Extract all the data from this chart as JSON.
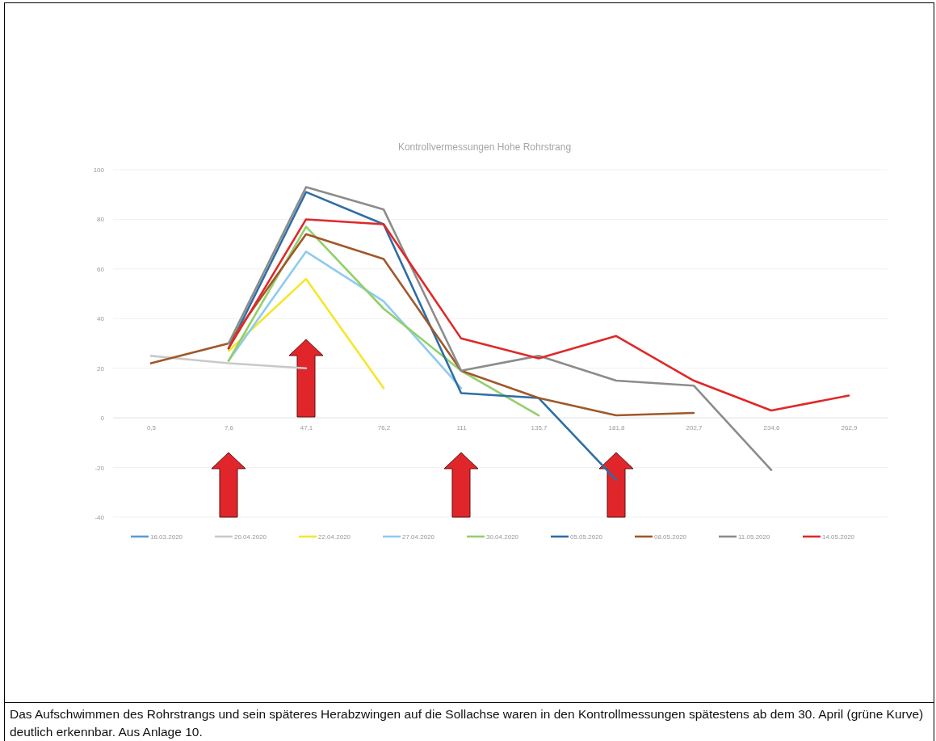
{
  "chart_data": {
    "type": "line",
    "title": "Kontrollvermessungen Hohe Rohrstrang",
    "categories": [
      "0,5",
      "7,6",
      "47,1",
      "76,2",
      "111",
      "135,7",
      "181,8",
      "202,7",
      "234,6",
      "262,9"
    ],
    "series": [
      {
        "name": "16.03.2020",
        "color": "#5b9bd5",
        "values": [
          null,
          null,
          null,
          null,
          null,
          null,
          null,
          null,
          null,
          null
        ]
      },
      {
        "name": "20.04.2020",
        "color": "#c9c9c9",
        "values": [
          25,
          22,
          20,
          null,
          null,
          null,
          null,
          null,
          null,
          null
        ]
      },
      {
        "name": "22.04.2020",
        "color": "#f5e62a",
        "values": [
          null,
          27,
          56,
          12,
          null,
          null,
          null,
          null,
          null,
          null
        ]
      },
      {
        "name": "27.04.2020",
        "color": "#8ecbef",
        "values": [
          null,
          23,
          67,
          47,
          12,
          null,
          null,
          null,
          null,
          null
        ]
      },
      {
        "name": "30.04.2020",
        "color": "#92d06a",
        "values": [
          null,
          23,
          77,
          44,
          19,
          1,
          null,
          null,
          null,
          null
        ]
      },
      {
        "name": "05.05.2020",
        "color": "#2e6ea6",
        "values": [
          null,
          28,
          91,
          78,
          10,
          8,
          -25,
          null,
          null,
          null
        ]
      },
      {
        "name": "08.05.2020",
        "color": "#a0582a",
        "values": [
          22,
          30,
          74,
          64,
          19,
          8,
          1,
          2,
          null,
          null
        ]
      },
      {
        "name": "11.05.2020",
        "color": "#8c8c8c",
        "values": [
          null,
          30,
          93,
          84,
          19,
          25,
          15,
          13,
          -21,
          null
        ]
      },
      {
        "name": "14.05.2020",
        "color": "#e02828",
        "values": [
          null,
          28,
          80,
          78,
          32,
          24,
          33,
          15,
          3,
          9
        ]
      }
    ],
    "ylim": [
      -40,
      100
    ],
    "yticks": [
      -40,
      -20,
      0,
      20,
      40,
      60,
      80,
      100
    ],
    "grid": "y",
    "legend": "bottom",
    "annotations": [
      "Das Aufschwimmen des Rohrstrangs und sein späteres Herabzwingen auf die Sollachse waren in den Kontrollmessungen spätestens ab dem 30. April (grüne Kurve) deutlich erkennbar. Aus Anlage 10."
    ]
  }
}
